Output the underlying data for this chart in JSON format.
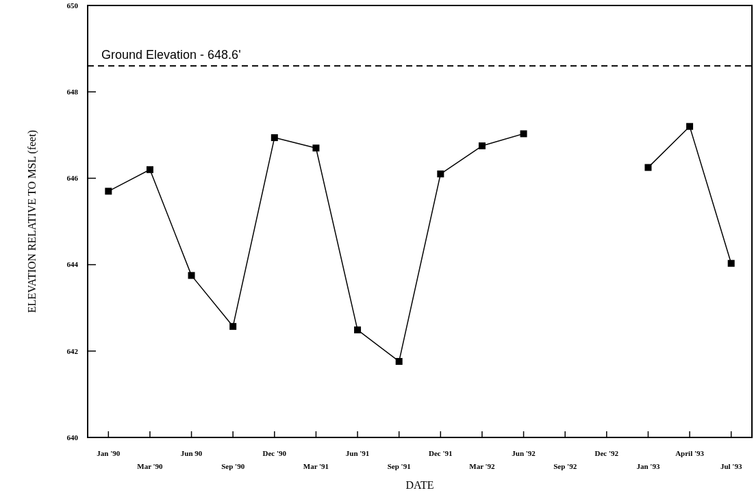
{
  "chart_data": {
    "type": "line",
    "xlabel": "DATE",
    "ylabel": "ELEVATION RELATIVE TO MSL  (feet)",
    "categories": [
      "Jan '90",
      "Mar '90",
      "Jun 90",
      "Sep '90",
      "Dec '90",
      "Mar '91",
      "Jun '91",
      "Sep '91",
      "Dec '91",
      "Mar '92",
      "Jun '92",
      "Sep '92",
      "Dec '92",
      "Jan '93",
      "April '93",
      "Jul '93"
    ],
    "series": [
      {
        "color": "#000000",
        "values": [
          645.7,
          646.2,
          643.75,
          642.57,
          646.94,
          646.7,
          642.49,
          641.76,
          646.1,
          646.75,
          647.03,
          null,
          null,
          646.25,
          647.2,
          644.03
        ]
      }
    ],
    "ylim": [
      640,
      650
    ],
    "yticks": [
      640,
      642,
      644,
      646,
      648,
      650
    ],
    "ref_lines": [
      {
        "axis": "y",
        "value": 648.6,
        "label": "Ground Elevation - 648.6'",
        "color": "#000000",
        "line_style": "dashed"
      }
    ],
    "marker": "square",
    "line_style": "solid"
  }
}
